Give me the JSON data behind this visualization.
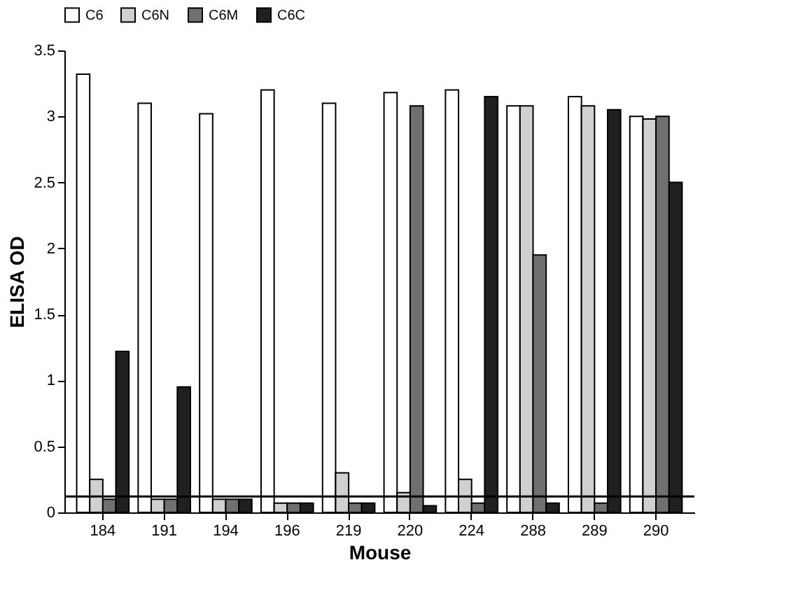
{
  "chart_data": {
    "type": "bar",
    "xlabel": "Mouse",
    "ylabel": "ELISA OD",
    "categories": [
      "184",
      "191",
      "194",
      "196",
      "219",
      "220",
      "224",
      "288",
      "289",
      "290"
    ],
    "series": [
      {
        "name": "C6",
        "color": "#ffffff",
        "values": [
          3.32,
          3.1,
          3.02,
          3.2,
          3.1,
          3.18,
          3.2,
          3.08,
          3.15,
          3.0
        ]
      },
      {
        "name": "C6N",
        "color": "#d0d0d0",
        "values": [
          0.25,
          0.1,
          0.1,
          0.07,
          0.3,
          0.15,
          0.25,
          3.08,
          3.08,
          2.98
        ]
      },
      {
        "name": "C6M",
        "color": "#707070",
        "values": [
          0.1,
          0.1,
          0.1,
          0.07,
          0.07,
          3.08,
          0.07,
          1.95,
          0.07,
          3.0
        ]
      },
      {
        "name": "C6C",
        "color": "#202020",
        "values": [
          1.22,
          0.95,
          0.1,
          0.07,
          0.07,
          0.05,
          3.15,
          0.07,
          3.05,
          2.5
        ]
      }
    ],
    "ylim": [
      0,
      3.5
    ],
    "yticks": [
      0,
      0.5,
      1,
      1.5,
      2,
      2.5,
      3,
      3.5
    ],
    "ref_lines": [
      {
        "axis": "y",
        "value": 0.12,
        "label": null
      }
    ],
    "legend": "top",
    "grid": false
  }
}
